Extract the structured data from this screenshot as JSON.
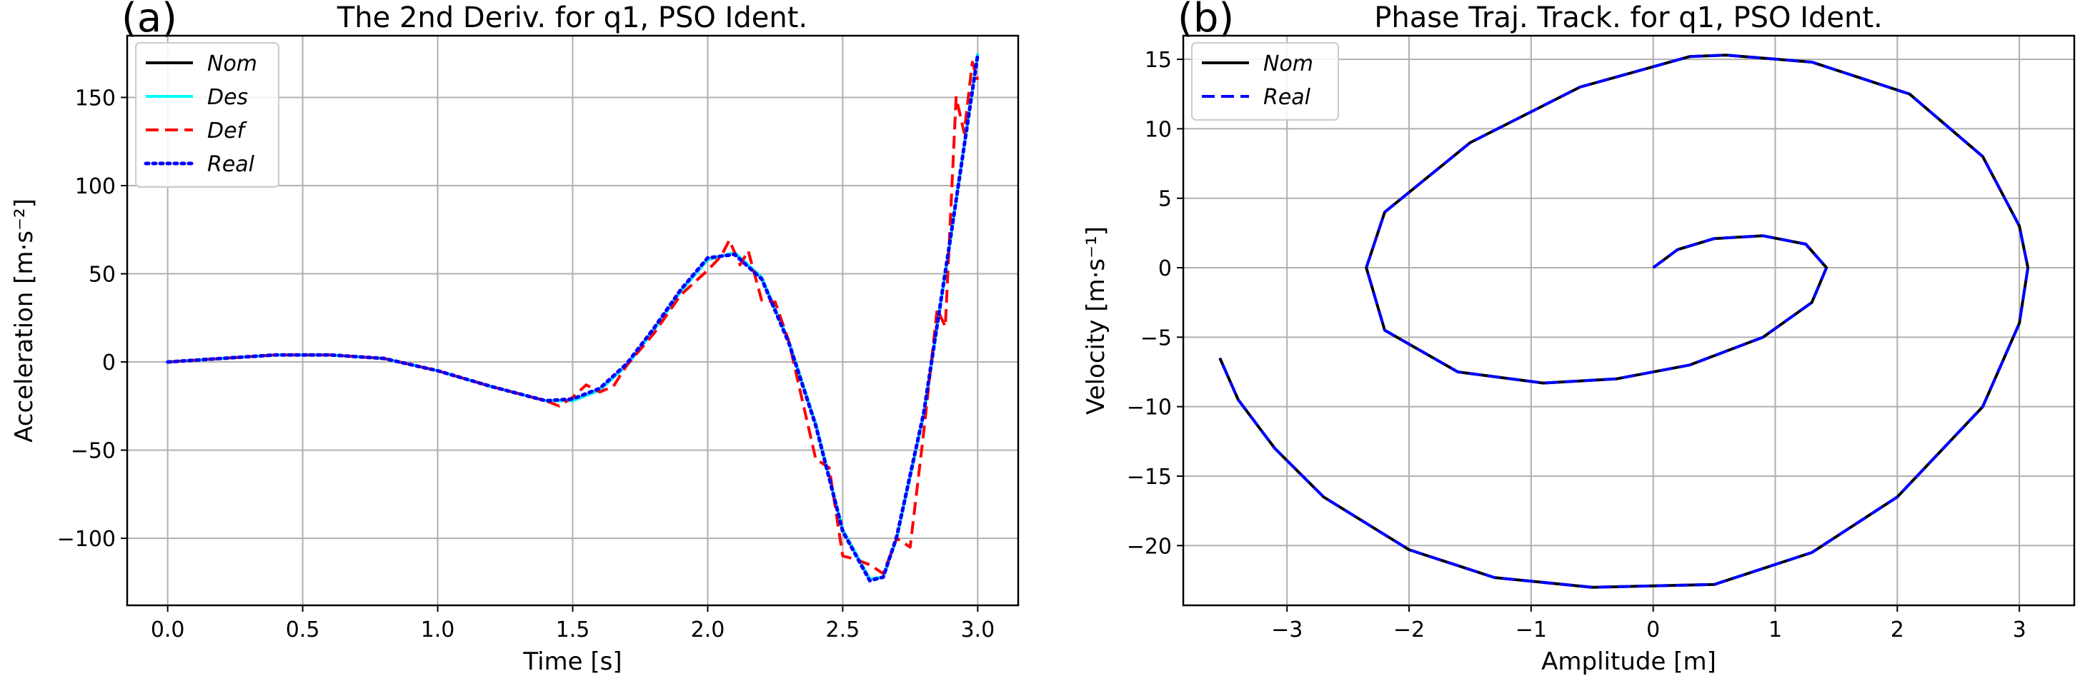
{
  "chart_data": [
    {
      "panel": "(a)",
      "type": "line",
      "title": "The 2nd Deriv. for q1, PSO Ident.",
      "xlabel": "Time [s]",
      "ylabel": "Acceleration [m·s⁻²]",
      "xlim": [
        -0.15,
        3.15
      ],
      "ylim": [
        -138,
        185
      ],
      "xticks": [
        0.0,
        0.5,
        1.0,
        1.5,
        2.0,
        2.5,
        3.0
      ],
      "xtick_labels": [
        "0.0",
        "0.5",
        "1.0",
        "1.5",
        "2.0",
        "2.5",
        "3.0"
      ],
      "yticks": [
        -100,
        -50,
        0,
        50,
        100,
        150
      ],
      "ytick_labels": [
        "−100",
        "−50",
        "0",
        "50",
        "100",
        "150"
      ],
      "grid": true,
      "legend_position": "top-left",
      "series": [
        {
          "name": "Nom",
          "color": "#000000",
          "dash": "solid",
          "x": [
            0.0,
            0.2,
            0.4,
            0.6,
            0.8,
            1.0,
            1.2,
            1.4,
            1.5,
            1.6,
            1.7,
            1.8,
            1.9,
            2.0,
            2.1,
            2.2,
            2.3,
            2.4,
            2.5,
            2.6,
            2.65,
            2.7,
            2.8,
            2.9,
            3.0
          ],
          "y": [
            0,
            2,
            4,
            4,
            2,
            -5,
            -14,
            -22,
            -22,
            -16,
            -2,
            18,
            40,
            58,
            62,
            48,
            12,
            -35,
            -95,
            -123,
            -122,
            -100,
            -30,
            70,
            175
          ]
        },
        {
          "name": "Des",
          "color": "#00ffff",
          "dash": "solid",
          "x": [
            0.0,
            0.2,
            0.4,
            0.6,
            0.8,
            1.0,
            1.2,
            1.4,
            1.5,
            1.6,
            1.7,
            1.8,
            1.9,
            2.0,
            2.1,
            2.2,
            2.3,
            2.4,
            2.5,
            2.6,
            2.65,
            2.7,
            2.8,
            2.9,
            3.0
          ],
          "y": [
            0,
            2,
            4,
            4,
            2,
            -5,
            -14,
            -22,
            -22,
            -16,
            -2,
            18,
            40,
            58,
            62,
            48,
            12,
            -35,
            -95,
            -123,
            -122,
            -100,
            -30,
            70,
            175
          ]
        },
        {
          "name": "Def",
          "color": "#ff0000",
          "dash": "dashed",
          "x": [
            0.0,
            0.2,
            0.4,
            0.6,
            0.8,
            1.0,
            1.2,
            1.4,
            1.45,
            1.5,
            1.55,
            1.6,
            1.65,
            1.7,
            1.8,
            1.9,
            2.0,
            2.05,
            2.08,
            2.12,
            2.15,
            2.2,
            2.25,
            2.3,
            2.4,
            2.45,
            2.5,
            2.55,
            2.6,
            2.65,
            2.7,
            2.75,
            2.8,
            2.85,
            2.88,
            2.92,
            2.95,
            2.98,
            3.0
          ],
          "y": [
            0,
            2,
            4,
            4,
            2,
            -5,
            -14,
            -22,
            -25,
            -20,
            -13,
            -17,
            -14,
            -2,
            16,
            38,
            52,
            60,
            69,
            55,
            63,
            35,
            34,
            12,
            -55,
            -60,
            -110,
            -112,
            -115,
            -120,
            -100,
            -105,
            -40,
            30,
            20,
            150,
            130,
            170,
            160
          ]
        },
        {
          "name": "Real",
          "color": "#0000ff",
          "dash": "dotted",
          "x": [
            0.0,
            0.2,
            0.4,
            0.6,
            0.8,
            1.0,
            1.2,
            1.4,
            1.5,
            1.6,
            1.7,
            1.8,
            1.9,
            2.0,
            2.1,
            2.2,
            2.3,
            2.4,
            2.5,
            2.6,
            2.65,
            2.7,
            2.8,
            2.9,
            3.0
          ],
          "y": [
            0,
            2,
            4,
            4,
            2,
            -5,
            -14,
            -22,
            -21,
            -15,
            -1,
            19,
            41,
            59,
            61,
            47,
            11,
            -36,
            -96,
            -124,
            -122,
            -99,
            -29,
            71,
            174
          ]
        }
      ]
    },
    {
      "panel": "(b)",
      "type": "line",
      "title": "Phase Traj. Track. for q1, PSO Ident.",
      "xlabel": "Amplitude [m]",
      "ylabel": "Velocity [m·s⁻¹]",
      "xlim": [
        -3.85,
        3.45
      ],
      "ylim": [
        -24.3,
        16.7
      ],
      "xticks": [
        -3,
        -2,
        -1,
        0,
        1,
        2,
        3
      ],
      "xtick_labels": [
        "−3",
        "−2",
        "−1",
        "0",
        "1",
        "2",
        "3"
      ],
      "yticks": [
        -20,
        -15,
        -10,
        -5,
        0,
        5,
        10,
        15
      ],
      "ytick_labels": [
        "−20",
        "−15",
        "−10",
        "−5",
        "0",
        "5",
        "10",
        "15"
      ],
      "grid": true,
      "legend_position": "top-left",
      "series": [
        {
          "name": "Nom",
          "color": "#000000",
          "dash": "solid",
          "x": [
            0.0,
            0.2,
            0.5,
            0.9,
            1.25,
            1.42,
            1.3,
            0.9,
            0.3,
            -0.3,
            -0.9,
            -1.6,
            -2.2,
            -2.35,
            -2.2,
            -1.5,
            -0.6,
            0.3,
            0.6,
            1.3,
            2.1,
            2.7,
            3.0,
            3.07,
            3.0,
            2.7,
            2.0,
            1.3,
            0.5,
            -0.5,
            -1.3,
            -2.0,
            -2.7,
            -3.1,
            -3.4,
            -3.55
          ],
          "y": [
            0,
            1.3,
            2.1,
            2.3,
            1.7,
            0,
            -2.5,
            -5.0,
            -7.0,
            -8.0,
            -8.3,
            -7.5,
            -4.5,
            0,
            4.0,
            9.0,
            13.0,
            15.2,
            15.3,
            14.8,
            12.5,
            8.0,
            3.0,
            0,
            -4.0,
            -10.0,
            -16.5,
            -20.5,
            -22.8,
            -23.0,
            -22.3,
            -20.3,
            -16.5,
            -13.0,
            -9.5,
            -6.5
          ]
        },
        {
          "name": "Real",
          "color": "#0000ff",
          "dash": "dashed",
          "x": [
            0.0,
            0.2,
            0.5,
            0.9,
            1.25,
            1.42,
            1.3,
            0.9,
            0.3,
            -0.3,
            -0.9,
            -1.6,
            -2.2,
            -2.35,
            -2.2,
            -1.5,
            -0.6,
            0.3,
            0.6,
            1.3,
            2.1,
            2.7,
            3.0,
            3.07,
            3.0,
            2.7,
            2.0,
            1.3,
            0.5,
            -0.5,
            -1.3,
            -2.0,
            -2.7,
            -3.1,
            -3.4,
            -3.55
          ],
          "y": [
            0,
            1.3,
            2.1,
            2.3,
            1.7,
            0,
            -2.5,
            -5.0,
            -7.0,
            -8.0,
            -8.3,
            -7.5,
            -4.5,
            0,
            4.0,
            9.0,
            13.0,
            15.2,
            15.3,
            14.8,
            12.5,
            8.0,
            3.0,
            0,
            -4.0,
            -10.0,
            -16.5,
            -20.5,
            -22.8,
            -23.0,
            -22.3,
            -20.3,
            -16.5,
            -13.0,
            -9.5,
            -6.5
          ]
        }
      ]
    }
  ]
}
